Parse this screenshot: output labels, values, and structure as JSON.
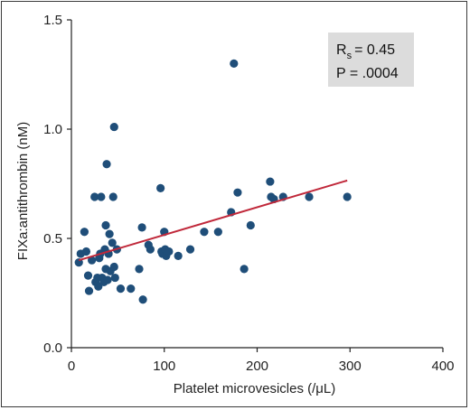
{
  "chart_data": {
    "type": "scatter",
    "title": "",
    "xlabel": "Platelet microvesicles (/μL)",
    "ylabel": "FIXa:antithrombin (nM)",
    "xlim": [
      0,
      400
    ],
    "ylim": [
      0,
      1.5
    ],
    "x_ticks": [
      0,
      100,
      200,
      300,
      400
    ],
    "x_tick_labels": [
      "0",
      "100",
      "200",
      "300",
      "400"
    ],
    "y_ticks": [
      0,
      0.5,
      1.0,
      1.5
    ],
    "y_tick_labels": [
      "0.0",
      "0.5",
      "1.0",
      "1.5"
    ],
    "grid": false,
    "point_color": "#1f4e79",
    "line_color": "#c0283a",
    "stats_box_color": "#dcdcdc",
    "stats": {
      "rs_symbol": "R",
      "rs_subscript": "s",
      "rs_value": "= 0.45",
      "p_text": "P = .0004"
    },
    "regression": {
      "x": [
        8,
        297
      ],
      "y": [
        0.4,
        0.765
      ]
    },
    "points": [
      {
        "x": 8,
        "y": 0.39
      },
      {
        "x": 10,
        "y": 0.43
      },
      {
        "x": 14,
        "y": 0.53
      },
      {
        "x": 16,
        "y": 0.44
      },
      {
        "x": 18,
        "y": 0.33
      },
      {
        "x": 19,
        "y": 0.26
      },
      {
        "x": 22,
        "y": 0.4
      },
      {
        "x": 25,
        "y": 0.69
      },
      {
        "x": 26,
        "y": 0.3
      },
      {
        "x": 28,
        "y": 0.32
      },
      {
        "x": 29,
        "y": 0.28
      },
      {
        "x": 30,
        "y": 0.41
      },
      {
        "x": 31,
        "y": 0.43
      },
      {
        "x": 32,
        "y": 0.69
      },
      {
        "x": 33,
        "y": 0.32
      },
      {
        "x": 35,
        "y": 0.3
      },
      {
        "x": 36,
        "y": 0.45
      },
      {
        "x": 37,
        "y": 0.56
      },
      {
        "x": 37,
        "y": 0.36
      },
      {
        "x": 38,
        "y": 0.84
      },
      {
        "x": 39,
        "y": 0.31
      },
      {
        "x": 40,
        "y": 0.43
      },
      {
        "x": 41,
        "y": 0.52
      },
      {
        "x": 42,
        "y": 0.35
      },
      {
        "x": 44,
        "y": 0.48
      },
      {
        "x": 45,
        "y": 0.69
      },
      {
        "x": 46,
        "y": 1.01
      },
      {
        "x": 46,
        "y": 0.37
      },
      {
        "x": 47,
        "y": 0.32
      },
      {
        "x": 49,
        "y": 0.45
      },
      {
        "x": 53,
        "y": 0.27
      },
      {
        "x": 64,
        "y": 0.27
      },
      {
        "x": 73,
        "y": 0.36
      },
      {
        "x": 76,
        "y": 0.55
      },
      {
        "x": 77,
        "y": 0.22
      },
      {
        "x": 83,
        "y": 0.47
      },
      {
        "x": 85,
        "y": 0.45
      },
      {
        "x": 96,
        "y": 0.73
      },
      {
        "x": 97,
        "y": 0.44
      },
      {
        "x": 98,
        "y": 0.43
      },
      {
        "x": 100,
        "y": 0.53
      },
      {
        "x": 101,
        "y": 0.45
      },
      {
        "x": 102,
        "y": 0.42
      },
      {
        "x": 105,
        "y": 0.44
      },
      {
        "x": 115,
        "y": 0.42
      },
      {
        "x": 128,
        "y": 0.45
      },
      {
        "x": 143,
        "y": 0.53
      },
      {
        "x": 158,
        "y": 0.53
      },
      {
        "x": 172,
        "y": 0.62
      },
      {
        "x": 175,
        "y": 1.3
      },
      {
        "x": 179,
        "y": 0.71
      },
      {
        "x": 186,
        "y": 0.36
      },
      {
        "x": 193,
        "y": 0.56
      },
      {
        "x": 214,
        "y": 0.76
      },
      {
        "x": 215,
        "y": 0.69
      },
      {
        "x": 218,
        "y": 0.68
      },
      {
        "x": 228,
        "y": 0.69
      },
      {
        "x": 256,
        "y": 0.69
      },
      {
        "x": 297,
        "y": 0.69
      }
    ]
  }
}
